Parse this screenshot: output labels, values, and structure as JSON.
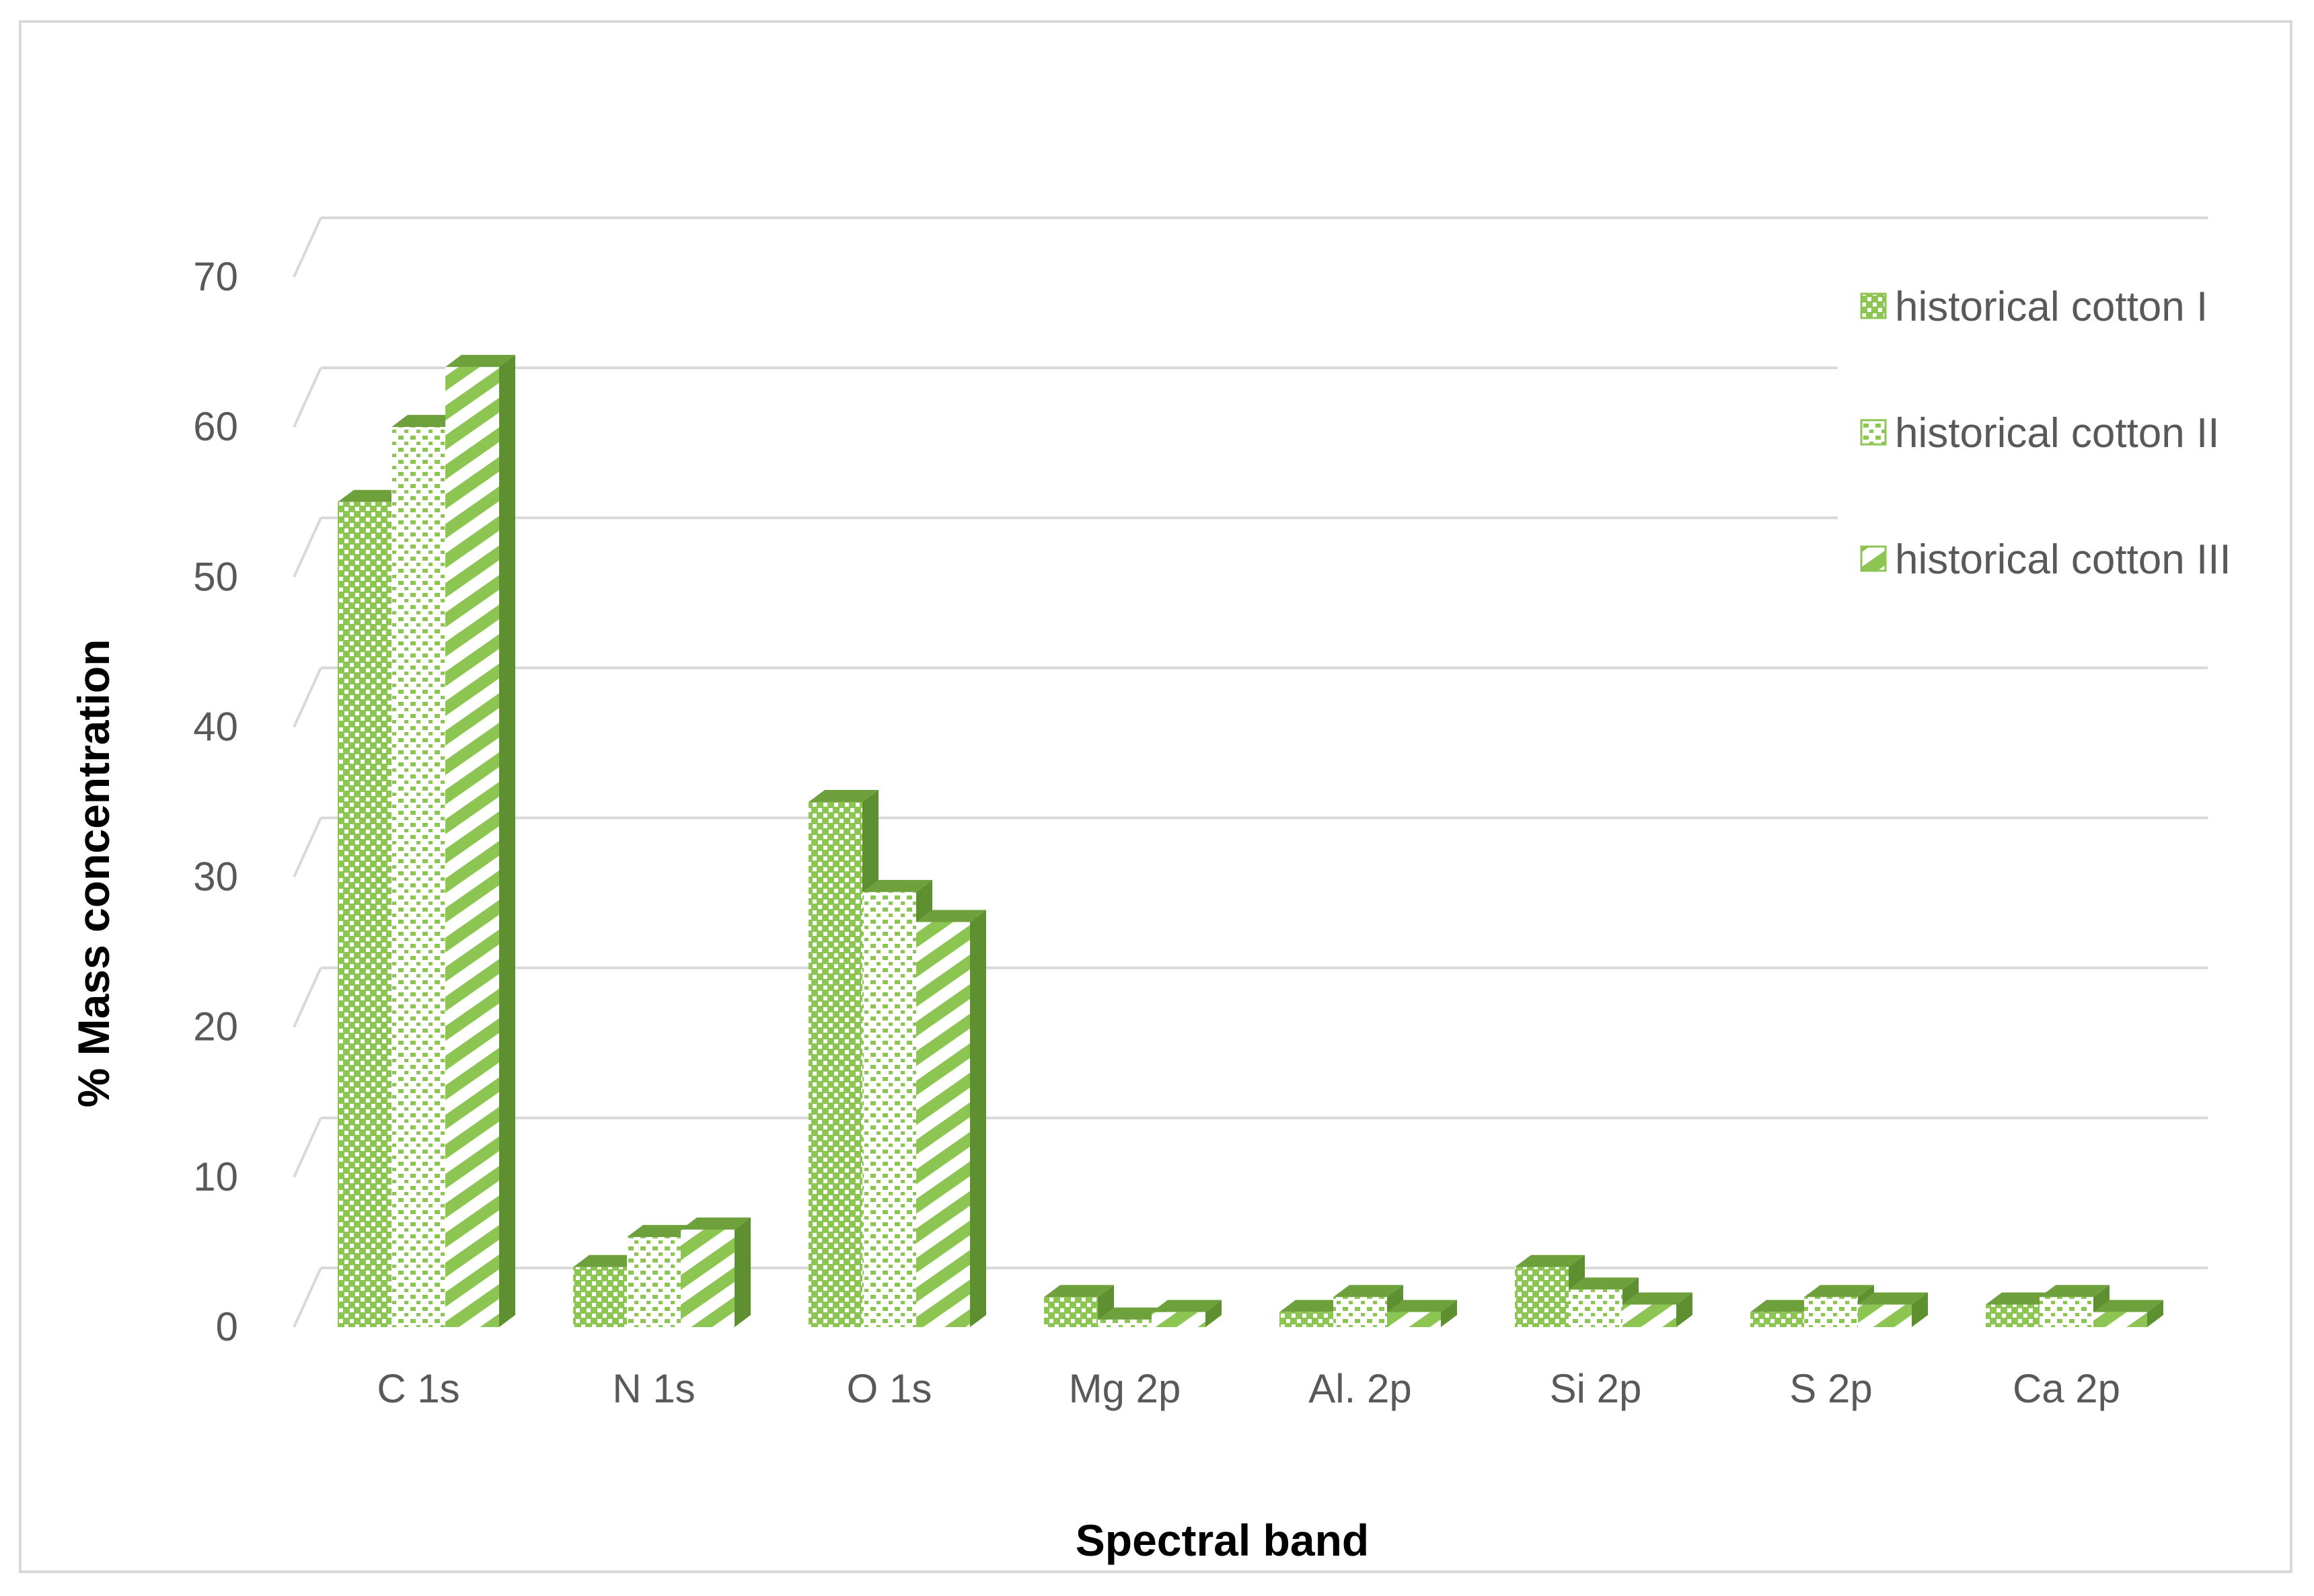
{
  "colors": {
    "green": "#8dc553",
    "green_dark": "#6ea13c",
    "green_side": "#5e8f30",
    "gridline": "#d9d9d9",
    "pattern_bg": "#ffffff"
  },
  "chart_data": {
    "type": "bar",
    "style": "3d-clustered-column",
    "title": "",
    "xlabel": "Spectral band",
    "ylabel": "% Mass concentration",
    "ylim": [
      0,
      70
    ],
    "yticks": [
      "0",
      "10",
      "20",
      "30",
      "40",
      "50",
      "60",
      "70"
    ],
    "grid": true,
    "legend_position": "right",
    "categories": [
      "C 1s",
      "N 1s",
      "O 1s",
      "Mg 2p",
      "Al. 2p",
      "Si 2p",
      "S 2p",
      "Ca 2p"
    ],
    "series": [
      {
        "name": "historical cotton I",
        "pattern": "checker",
        "values": [
          55,
          4,
          35,
          2,
          1,
          4,
          1,
          1.5
        ]
      },
      {
        "name": "historical cotton II",
        "pattern": "dots",
        "values": [
          60,
          6,
          29,
          0.5,
          2,
          2.5,
          2,
          2
        ]
      },
      {
        "name": "historical cotton III",
        "pattern": "diagonal",
        "values": [
          64,
          6.5,
          27,
          1,
          1,
          1.5,
          1.5,
          1
        ]
      }
    ]
  }
}
